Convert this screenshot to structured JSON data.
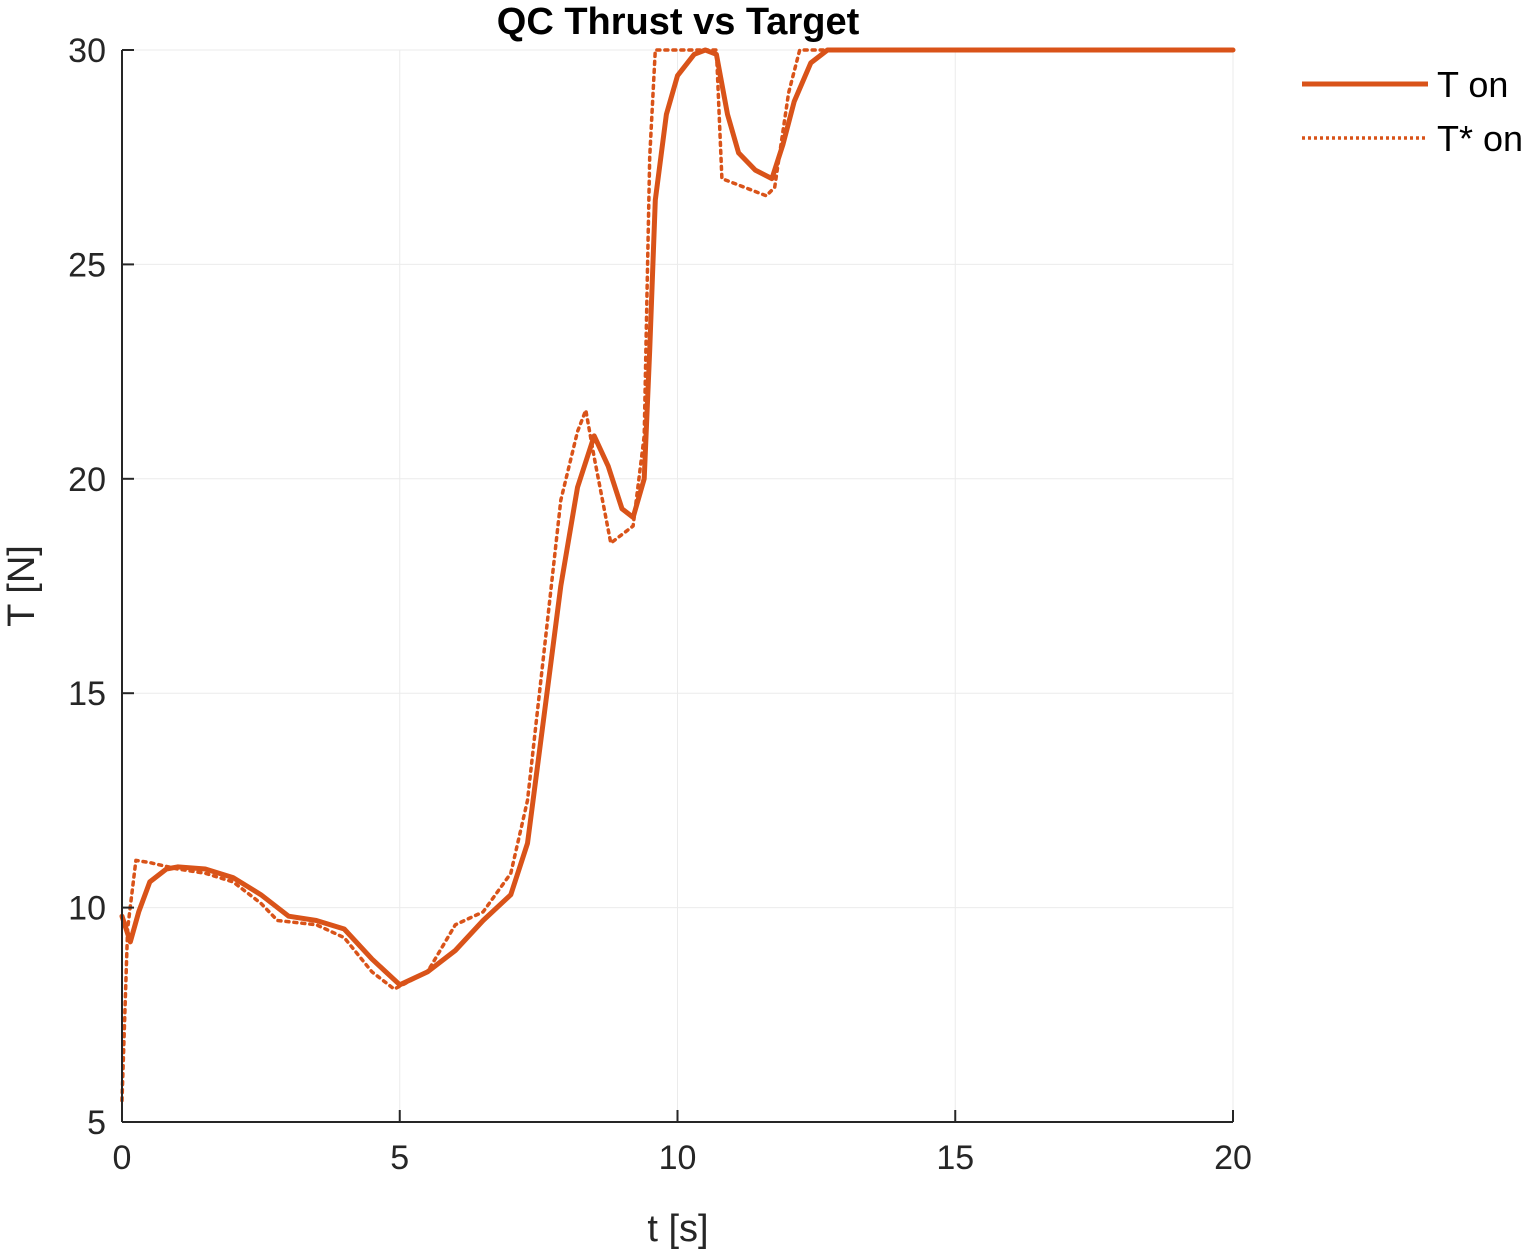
{
  "chart_data": {
    "type": "line",
    "title": "QC Thrust vs Target",
    "xlabel": "t [s]",
    "ylabel": "T [N]",
    "xlim": [
      0,
      20
    ],
    "ylim": [
      5,
      30
    ],
    "xticks": [
      0,
      5,
      10,
      15,
      20
    ],
    "yticks": [
      5,
      10,
      15,
      20,
      25,
      30
    ],
    "grid": true,
    "legend_position": "outside top-right",
    "colors": {
      "series": "#D95319",
      "axis": "#262626",
      "grid": "#ebebeb"
    },
    "series": [
      {
        "name": "T on",
        "style": "solid",
        "points": [
          [
            0,
            9.8
          ],
          [
            0.15,
            9.2
          ],
          [
            0.3,
            9.9
          ],
          [
            0.5,
            10.6
          ],
          [
            0.8,
            10.9
          ],
          [
            1.0,
            10.95
          ],
          [
            1.5,
            10.9
          ],
          [
            2.0,
            10.7
          ],
          [
            2.5,
            10.3
          ],
          [
            3.0,
            9.8
          ],
          [
            3.5,
            9.7
          ],
          [
            4.0,
            9.5
          ],
          [
            4.5,
            8.8
          ],
          [
            5.0,
            8.2
          ],
          [
            5.5,
            8.5
          ],
          [
            6.0,
            9.0
          ],
          [
            6.5,
            9.7
          ],
          [
            7.0,
            10.3
          ],
          [
            7.3,
            11.5
          ],
          [
            7.6,
            14.5
          ],
          [
            7.9,
            17.5
          ],
          [
            8.2,
            19.8
          ],
          [
            8.5,
            21.0
          ],
          [
            8.75,
            20.3
          ],
          [
            9.0,
            19.3
          ],
          [
            9.2,
            19.1
          ],
          [
            9.4,
            20.0
          ],
          [
            9.5,
            23.0
          ],
          [
            9.6,
            26.5
          ],
          [
            9.8,
            28.5
          ],
          [
            10.0,
            29.4
          ],
          [
            10.3,
            29.9
          ],
          [
            10.5,
            30.0
          ],
          [
            10.7,
            29.9
          ],
          [
            10.9,
            28.5
          ],
          [
            11.1,
            27.6
          ],
          [
            11.4,
            27.2
          ],
          [
            11.7,
            27.0
          ],
          [
            11.9,
            27.8
          ],
          [
            12.1,
            28.8
          ],
          [
            12.4,
            29.7
          ],
          [
            12.7,
            30.0
          ],
          [
            15.0,
            30.0
          ],
          [
            20.0,
            30.0
          ]
        ]
      },
      {
        "name": "T* on",
        "style": "dotted",
        "points": [
          [
            0,
            5.5
          ],
          [
            0.05,
            7.5
          ],
          [
            0.1,
            9.5
          ],
          [
            0.25,
            11.1
          ],
          [
            0.5,
            11.05
          ],
          [
            1.0,
            10.9
          ],
          [
            1.5,
            10.8
          ],
          [
            2.0,
            10.6
          ],
          [
            2.5,
            10.1
          ],
          [
            2.8,
            9.7
          ],
          [
            3.5,
            9.6
          ],
          [
            4.0,
            9.3
          ],
          [
            4.5,
            8.5
          ],
          [
            4.9,
            8.1
          ],
          [
            5.5,
            8.5
          ],
          [
            6.0,
            9.6
          ],
          [
            6.5,
            9.9
          ],
          [
            7.0,
            10.8
          ],
          [
            7.3,
            12.5
          ],
          [
            7.6,
            16.0
          ],
          [
            7.9,
            19.5
          ],
          [
            8.2,
            21.1
          ],
          [
            8.35,
            21.6
          ],
          [
            8.5,
            20.5
          ],
          [
            8.8,
            18.5
          ],
          [
            9.2,
            18.9
          ],
          [
            9.4,
            21.0
          ],
          [
            9.5,
            27.5
          ],
          [
            9.6,
            30.0
          ],
          [
            10.7,
            30.0
          ],
          [
            10.8,
            27.0
          ],
          [
            11.6,
            26.6
          ],
          [
            11.75,
            26.8
          ],
          [
            12.0,
            29.0
          ],
          [
            12.2,
            30.0
          ],
          [
            20.0,
            30.0
          ]
        ]
      }
    ]
  }
}
